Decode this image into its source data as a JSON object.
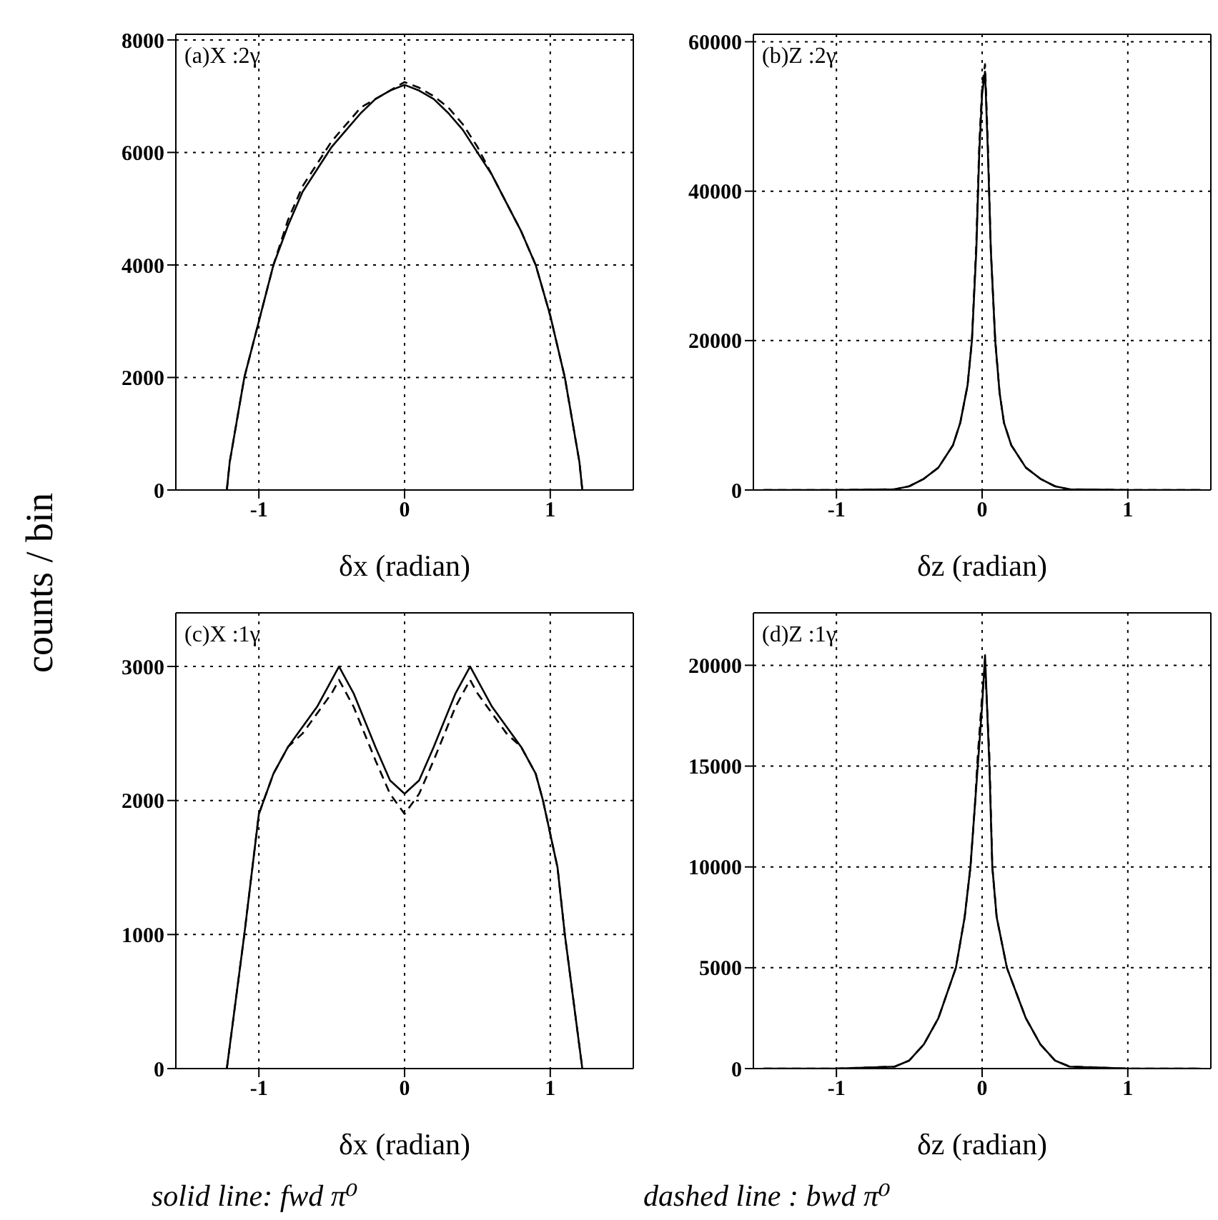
{
  "chart_data": [
    {
      "type": "line",
      "annotations": [
        "(a)X :2γ"
      ],
      "xlabel": "δx (radian)",
      "ylabel": "counts / bin",
      "xlim": [
        -1.57,
        1.57
      ],
      "xticks": [
        -1,
        0,
        1
      ],
      "ylim": [
        0,
        8100
      ],
      "yticks": [
        0,
        2000,
        4000,
        6000,
        8000
      ],
      "grid": true,
      "series": [
        {
          "color": "#000000",
          "line_style": "solid",
          "x": [
            -1.22,
            -1.2,
            -1.1,
            -1.0,
            -0.9,
            -0.8,
            -0.7,
            -0.6,
            -0.5,
            -0.4,
            -0.3,
            -0.2,
            -0.1,
            0,
            0.1,
            0.2,
            0.3,
            0.4,
            0.5,
            0.6,
            0.7,
            0.8,
            0.9,
            1.0,
            1.1,
            1.2,
            1.22
          ],
          "values": [
            0,
            500,
            2000,
            3000,
            4000,
            4700,
            5300,
            5700,
            6100,
            6400,
            6700,
            6950,
            7100,
            7200,
            7100,
            6950,
            6700,
            6400,
            6000,
            5600,
            5100,
            4600,
            4000,
            3100,
            2000,
            500,
            0
          ]
        },
        {
          "color": "#000000",
          "line_style": "dashed",
          "x": [
            -1.22,
            -1.2,
            -1.1,
            -1.0,
            -0.9,
            -0.8,
            -0.7,
            -0.6,
            -0.5,
            -0.4,
            -0.3,
            -0.2,
            -0.1,
            0,
            0.1,
            0.2,
            0.3,
            0.4,
            0.5,
            0.6,
            0.7,
            0.8,
            0.9,
            1.0,
            1.1,
            1.2,
            1.22
          ],
          "values": [
            0,
            500,
            2000,
            3000,
            4000,
            4800,
            5400,
            5800,
            6200,
            6500,
            6800,
            6950,
            7100,
            7250,
            7150,
            7000,
            6800,
            6500,
            6100,
            5600,
            5100,
            4600,
            4000,
            3100,
            2000,
            500,
            0
          ]
        }
      ]
    },
    {
      "type": "line",
      "annotations": [
        "(b)Z :2γ"
      ],
      "xlabel": "δz (radian)",
      "xlim": [
        -1.57,
        1.57
      ],
      "xticks": [
        -1,
        0,
        1
      ],
      "ylim": [
        0,
        61000
      ],
      "yticks": [
        0,
        20000,
        40000,
        60000
      ],
      "grid": true,
      "series": [
        {
          "color": "#000000",
          "line_style": "solid",
          "x": [
            -1.5,
            -1.0,
            -0.6,
            -0.5,
            -0.4,
            -0.3,
            -0.2,
            -0.15,
            -0.1,
            -0.07,
            -0.04,
            -0.02,
            0,
            0.02,
            0.04,
            0.06,
            0.09,
            0.12,
            0.15,
            0.2,
            0.3,
            0.4,
            0.5,
            0.6,
            1.0,
            1.5
          ],
          "values": [
            0,
            0,
            100,
            500,
            1500,
            3000,
            6000,
            9000,
            14000,
            20000,
            32000,
            45000,
            53000,
            56000,
            45000,
            32000,
            20000,
            13000,
            9000,
            6000,
            3000,
            1500,
            500,
            100,
            0,
            0
          ]
        },
        {
          "color": "#000000",
          "line_style": "dashed",
          "x": [
            -1.5,
            -1.0,
            -0.6,
            -0.5,
            -0.4,
            -0.3,
            -0.2,
            -0.15,
            -0.1,
            -0.07,
            -0.04,
            -0.02,
            0,
            0.02,
            0.04,
            0.06,
            0.09,
            0.12,
            0.15,
            0.2,
            0.3,
            0.4,
            0.5,
            0.6,
            1.0,
            1.5
          ],
          "values": [
            0,
            0,
            100,
            500,
            1500,
            3000,
            6000,
            9000,
            14000,
            20000,
            33000,
            46000,
            54000,
            57000,
            46000,
            32000,
            20000,
            13000,
            9000,
            6000,
            3000,
            1500,
            500,
            100,
            0,
            0
          ]
        }
      ]
    },
    {
      "type": "line",
      "annotations": [
        "(c)X :1γ",
        "solid line: fwd  π⁰"
      ],
      "xlabel": "δx (radian)",
      "xlim": [
        -1.57,
        1.57
      ],
      "xticks": [
        -1,
        0,
        1
      ],
      "ylim": [
        0,
        3400
      ],
      "yticks": [
        0,
        1000,
        2000,
        3000
      ],
      "grid": true,
      "series": [
        {
          "color": "#000000",
          "line_style": "solid",
          "x": [
            -1.22,
            -1.1,
            -1.0,
            -0.9,
            -0.8,
            -0.7,
            -0.6,
            -0.5,
            -0.45,
            -0.35,
            -0.2,
            -0.1,
            0,
            0.1,
            0.2,
            0.35,
            0.45,
            0.5,
            0.6,
            0.7,
            0.8,
            0.9,
            0.95,
            1.05,
            1.1,
            1.22
          ],
          "values": [
            0,
            1000,
            1900,
            2200,
            2400,
            2550,
            2700,
            2900,
            3000,
            2800,
            2400,
            2150,
            2050,
            2150,
            2400,
            2800,
            3000,
            2900,
            2700,
            2550,
            2400,
            2200,
            2000,
            1500,
            1000,
            0
          ]
        },
        {
          "color": "#000000",
          "line_style": "dashed",
          "x": [
            -1.22,
            -1.1,
            -1.0,
            -0.9,
            -0.8,
            -0.7,
            -0.6,
            -0.5,
            -0.45,
            -0.35,
            -0.2,
            -0.1,
            0,
            0.1,
            0.2,
            0.35,
            0.45,
            0.5,
            0.6,
            0.7,
            0.8,
            0.9,
            0.95,
            1.05,
            1.1,
            1.22
          ],
          "values": [
            0,
            1000,
            1900,
            2200,
            2400,
            2500,
            2650,
            2800,
            2900,
            2700,
            2300,
            2050,
            1900,
            2050,
            2300,
            2700,
            2900,
            2800,
            2650,
            2500,
            2400,
            2200,
            2000,
            1500,
            1000,
            0
          ]
        }
      ]
    },
    {
      "type": "line",
      "annotations": [
        "(d)Z :1γ",
        "dashed line : bwd  π⁰"
      ],
      "xlabel": "δz (radian)",
      "xlim": [
        -1.57,
        1.57
      ],
      "xticks": [
        -1,
        0,
        1
      ],
      "ylim": [
        0,
        22600
      ],
      "yticks": [
        0,
        5000,
        10000,
        15000,
        20000
      ],
      "grid": true,
      "series": [
        {
          "color": "#000000",
          "line_style": "solid",
          "x": [
            -1.5,
            -1.0,
            -0.6,
            -0.5,
            -0.4,
            -0.3,
            -0.18,
            -0.12,
            -0.08,
            -0.05,
            -0.03,
            0,
            0.02,
            0.05,
            0.07,
            0.1,
            0.17,
            0.3,
            0.4,
            0.5,
            0.6,
            1.0,
            1.5
          ],
          "values": [
            0,
            0,
            100,
            400,
            1200,
            2500,
            5000,
            7500,
            10000,
            13000,
            15000,
            18000,
            20500,
            15000,
            10000,
            7500,
            5000,
            2500,
            1200,
            400,
            100,
            0,
            0
          ]
        },
        {
          "color": "#000000",
          "line_style": "dashed",
          "x": [
            -1.5,
            -1.0,
            -0.6,
            -0.5,
            -0.4,
            -0.3,
            -0.18,
            -0.12,
            -0.08,
            -0.05,
            -0.03,
            0,
            0.02,
            0.05,
            0.07,
            0.1,
            0.17,
            0.3,
            0.4,
            0.5,
            0.6,
            1.0,
            1.5
          ],
          "values": [
            0,
            0,
            100,
            400,
            1200,
            2500,
            5000,
            7500,
            10000,
            13000,
            15500,
            18500,
            20000,
            15500,
            10000,
            7500,
            5000,
            2500,
            1200,
            400,
            100,
            0,
            0
          ]
        }
      ]
    }
  ]
}
